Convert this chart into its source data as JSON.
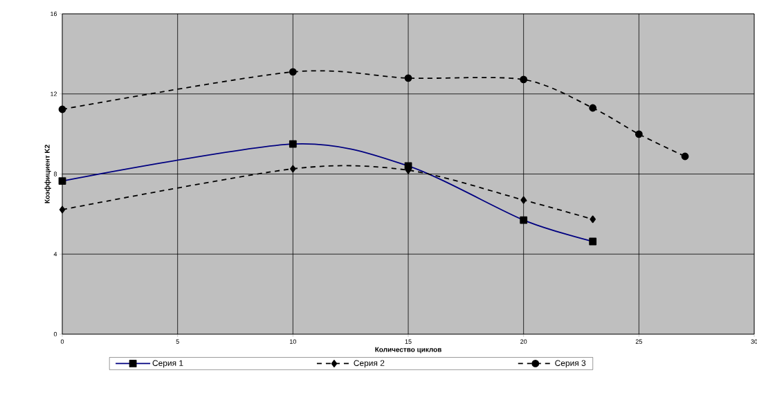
{
  "chart_data": {
    "type": "line",
    "xlabel": "Количество циклов",
    "ylabel": "Коэффициент K2",
    "xlim": [
      0,
      30
    ],
    "ylim": [
      0,
      16
    ],
    "xticks": [
      0,
      5,
      10,
      15,
      20,
      25,
      30
    ],
    "yticks": [
      0,
      4,
      8,
      12,
      16
    ],
    "grid": true,
    "legend": "bottom",
    "series": [
      {
        "name": "Серия 1",
        "color": "#000080",
        "marker": "square",
        "line_style": "solid",
        "x": [
          0,
          10,
          15,
          20,
          23
        ],
        "values": [
          7.65,
          9.5,
          8.4,
          5.7,
          4.63
        ]
      },
      {
        "name": "Серия 2",
        "color": "#000000",
        "marker": "diamond",
        "line_style": "dashed",
        "x": [
          0,
          10,
          15,
          20,
          23
        ],
        "values": [
          6.22,
          8.26,
          8.19,
          6.7,
          5.74
        ]
      },
      {
        "name": "Серия 3",
        "color": "#000000",
        "marker": "circle",
        "line_style": "dashed",
        "x": [
          0,
          10,
          15,
          20,
          23,
          25,
          27
        ],
        "values": [
          11.23,
          13.1,
          12.79,
          12.72,
          11.3,
          9.99,
          8.88
        ]
      }
    ]
  }
}
